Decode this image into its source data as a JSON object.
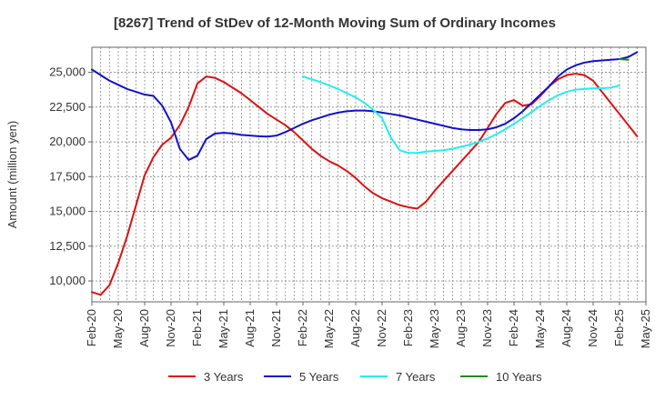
{
  "chart_data": {
    "type": "line",
    "title": "[8267]  Trend of StDev of 12-Month Moving Sum of Ordinary Incomes",
    "xlabel": "",
    "ylabel": "Amount (million yen)",
    "ylim": [
      8500,
      26800
    ],
    "yticks": [
      10000,
      12500,
      15000,
      17500,
      20000,
      22500,
      25000
    ],
    "ytick_labels": [
      "10,000",
      "12,500",
      "15,000",
      "17,500",
      "20,000",
      "22,500",
      "25,000"
    ],
    "xticks": [
      "Feb-20",
      "May-20",
      "Aug-20",
      "Nov-20",
      "Feb-21",
      "May-21",
      "Aug-21",
      "Nov-21",
      "Feb-22",
      "May-22",
      "Aug-22",
      "Nov-22",
      "Feb-23",
      "May-23",
      "Aug-23",
      "Nov-23",
      "Feb-24",
      "May-24",
      "Aug-24",
      "Nov-24",
      "Feb-25",
      "May-25"
    ],
    "grid": true,
    "legend_position": "bottom",
    "series": [
      {
        "name": "3 Years",
        "color": "#dd1111",
        "start_month_index": 0,
        "values": [
          9200,
          9000,
          9700,
          11300,
          13200,
          15400,
          17600,
          18900,
          19800,
          20300,
          21200,
          22500,
          24200,
          24700,
          24600,
          24300,
          23900,
          23500,
          23000,
          22500,
          22000,
          21600,
          21200,
          20700,
          20100,
          19500,
          19000,
          18600,
          18300,
          17900,
          17400,
          16800,
          16300,
          15950,
          15700,
          15450,
          15300,
          15200,
          15700,
          16500,
          17200,
          17900,
          18600,
          19300,
          20000,
          21000,
          22000,
          22800,
          23000,
          22600,
          22700,
          23300,
          24000,
          24500,
          24800,
          24900,
          24800,
          24400,
          23600,
          22800,
          22000,
          21200,
          20400
        ]
      },
      {
        "name": "5 Years",
        "color": "#1111cc",
        "start_month_index": 0,
        "values": [
          25200,
          24800,
          24400,
          24100,
          23800,
          23600,
          23400,
          23300,
          22600,
          21400,
          19500,
          18700,
          19000,
          20200,
          20600,
          20650,
          20600,
          20500,
          20450,
          20400,
          20380,
          20450,
          20700,
          21000,
          21300,
          21550,
          21750,
          21950,
          22100,
          22200,
          22250,
          22250,
          22200,
          22100,
          22000,
          21900,
          21750,
          21600,
          21450,
          21300,
          21150,
          21000,
          20900,
          20850,
          20850,
          20900,
          21050,
          21300,
          21700,
          22200,
          22800,
          23400,
          24000,
          24700,
          25200,
          25500,
          25700,
          25800,
          25850,
          25900,
          25950,
          26100,
          26450
        ]
      },
      {
        "name": "7 Years",
        "color": "#22eeee",
        "start_month_index": 24,
        "values": [
          24700,
          24500,
          24300,
          24050,
          23800,
          23500,
          23200,
          22800,
          22300,
          21700,
          20300,
          19400,
          19200,
          19200,
          19300,
          19350,
          19400,
          19500,
          19650,
          19800,
          20000,
          20250,
          20550,
          20900,
          21300,
          21700,
          22150,
          22600,
          23000,
          23350,
          23600,
          23750,
          23800,
          23850,
          23850,
          23900,
          24050
        ]
      },
      {
        "name": "10 Years",
        "color": "#228822",
        "start_month_index": 60,
        "values": [
          25950,
          25900
        ]
      }
    ]
  }
}
